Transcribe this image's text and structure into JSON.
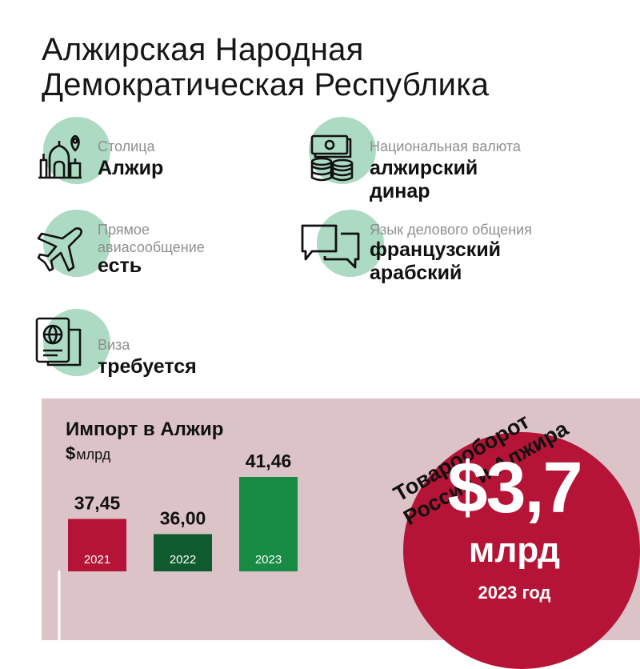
{
  "header": {
    "title_line1": "Алжирская Народная",
    "title_line2": "Демократическая Республика"
  },
  "facts": {
    "capital": {
      "label": "Столица",
      "value": "Алжир",
      "icon": "mosque-location-icon"
    },
    "currency": {
      "label": "Национальная валюта",
      "value_line1": "алжирский",
      "value_line2": "динар",
      "icon": "money-coins-icon"
    },
    "flights": {
      "label_line1": "Прямое",
      "label_line2": "авиасообщение",
      "value": "есть",
      "icon": "airplane-icon"
    },
    "language": {
      "label": "Язык делового общения",
      "value_line1": "французский",
      "value_line2": "арабский",
      "icon": "chat-bubbles-icon"
    },
    "visa": {
      "label": "Виза",
      "value": "требуется",
      "icon": "passport-icon"
    }
  },
  "trade": {
    "title_line1": "Товарооборот",
    "title_line2": "России и Алжира",
    "amount": "$3,7",
    "unit": "млрд",
    "year": "2023 год"
  },
  "chart_data": {
    "type": "bar",
    "title": "Импорт в Алжир",
    "unit_symbol": "$",
    "unit": "млрд",
    "categories": [
      "2021",
      "2022",
      "2023"
    ],
    "values": [
      37.45,
      36.0,
      41.46
    ],
    "value_labels": [
      "37,45",
      "36,00",
      "41,46"
    ],
    "colors": [
      "#b51436",
      "#0f5a2e",
      "#178a43"
    ],
    "grid": false,
    "legend": "none"
  },
  "colors": {
    "accent_red": "#b51436",
    "accent_green": "#178a43",
    "dark_green": "#0f5a2e",
    "mint": "#9fd4b9",
    "panel_pink": "#dcc3c8"
  }
}
